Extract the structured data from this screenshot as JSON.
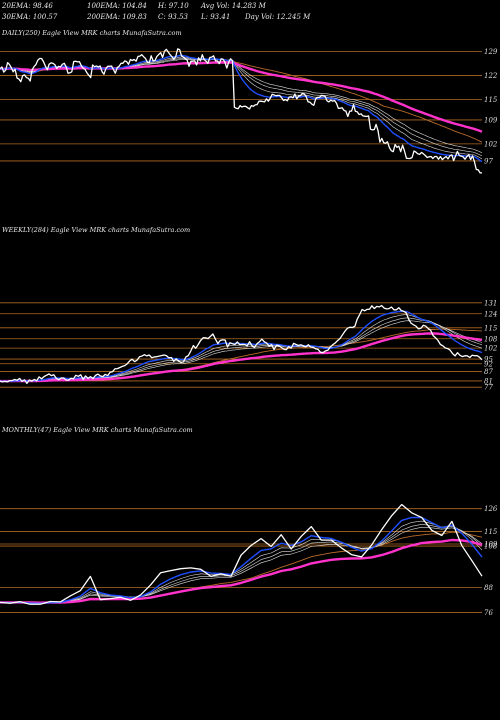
{
  "header": {
    "row1": [
      {
        "id": "ema20",
        "text": "20EMA: 98.46"
      },
      {
        "id": "ema100",
        "text": "100EMA: 104.84"
      },
      {
        "id": "high",
        "text": "H: 97.10"
      },
      {
        "id": "avgvol",
        "text": "Avg Vol: 14.283 M"
      }
    ],
    "row2": [
      {
        "id": "ema30",
        "text": "30EMA: 100.57"
      },
      {
        "id": "ema200",
        "text": "200EMA: 109.83"
      },
      {
        "id": "close",
        "text": "C: 93.53"
      },
      {
        "id": "low",
        "text": "L: 93.41"
      },
      {
        "id": "dayvol",
        "text": "Day Vol: 12.245 M"
      }
    ]
  },
  "colors": {
    "price": "#ffffff",
    "ema_blue": "#1f4fff",
    "ema_magenta": "#ff33cc",
    "ema_white": "#dddddd",
    "ema_brown": "#b86a2a",
    "hline": "#b06a20"
  },
  "chart_data": [
    {
      "type": "line",
      "title": "DAILY(250) Eagle  View  MRK charts MunafaSutra.com",
      "levels": [
        129,
        122,
        115,
        109,
        102,
        97
      ],
      "ylim": [
        92,
        133
      ],
      "price": [
        124,
        124.5,
        123,
        123.6,
        125.8,
        125.2,
        124.3,
        123.1,
        123.9,
        121.3,
        121,
        120.2,
        122,
        122.2,
        121.4,
        121.2,
        120.4,
        123.7,
        124.6,
        125.2,
        126.5,
        127,
        127,
        126.1,
        124.7,
        123.7,
        125.3,
        125.7,
        125.6,
        125.2,
        124.1,
        124.7,
        124.5,
        125.3,
        125.6,
        124.5,
        122.7,
        122.8,
        123.1,
        126.1,
        126.2,
        126,
        126.1,
        124.9,
        124.1,
        123.8,
        122.8,
        122.1,
        121.4,
        125.1,
        124.6,
        124.8,
        124.5,
        124.8,
        123.1,
        122.4,
        124.1,
        124.7,
        124.7,
        124.8,
        123.8,
        122.7,
        124.3,
        124.7,
        125.6,
        125.6,
        126.3,
        126.1,
        125.3,
        126.7,
        126.4,
        126.7,
        126.2,
        127.6,
        127.7,
        128.1,
        127.5,
        127,
        125.9,
        125.8,
        127.8,
        126.3,
        126.4,
        127.6,
        128.2,
        128.7,
        127.3,
        129.1,
        129.7,
        128.9,
        128.1,
        127.5,
        126.8,
        127.6,
        129.8,
        129.6,
        127.8,
        127.4,
        126.9,
        126.6,
        124.7,
        126.2,
        126.2,
        126.3,
        125.1,
        127.2,
        126.3,
        128.1,
        126.7,
        126.2,
        125.6,
        127.3,
        127.4,
        127.8,
        126.3,
        126.3,
        125.5,
        126.9,
        126.8,
        125.9,
        124.2,
        125.9,
        126.9,
        126.3,
        112.7,
        112.4,
        112.3,
        113.2,
        112.8,
        113,
        113,
        112.6,
        112.2,
        113.2,
        113,
        113.4,
        113.5,
        114.5,
        114.5,
        114.4,
        114.3,
        115.2,
        114.5,
        115.4,
        116.5,
        116.3,
        116.1,
        116.2,
        116.2,
        115.5,
        114.7,
        115,
        114.6,
        115.7,
        115.8,
        115.5,
        116.6,
        115.2,
        116,
        116.1,
        116.8,
        116.6,
        115.8,
        114.3,
        114.2,
        113.6,
        113.3,
        115.2,
        115.6,
        115.6,
        116.2,
        116.1,
        115.9,
        114.6,
        114.3,
        114.8,
        114.5,
        114.7,
        113.9,
        112.4,
        112.4,
        112.6,
        111.8,
        111.6,
        110,
        111.6,
        111.6,
        113.5,
        111.5,
        111.4,
        110.6,
        110.8,
        110.2,
        110.1,
        110,
        110.2,
        106.3,
        106.1,
        106.2,
        107.7,
        105.9,
        102.5,
        103.6,
        102.3,
        102.2,
        102.6,
        100.9,
        100,
        99.7,
        101.8,
        101,
        101.3,
        99.7,
        101.6,
        99.9,
        97.8,
        97.7,
        97.7,
        98,
        99.9,
        99.6,
        99.1,
        98.9,
        99.5,
        99.1,
        98.6,
        98,
        98.2,
        98.3,
        97.7,
        98.3,
        98.3,
        97.5,
        98.3,
        97.4,
        97.9,
        98.3,
        97.6,
        98.5,
        98.8,
        97.1,
        98.4,
        99.8,
        98.6,
        98.4,
        98.2,
        97.5,
        98.3,
        98.8,
        97.4,
        98.5,
        96.8,
        94.5,
        94.4,
        93.5,
        93.5
      ]
    },
    {
      "type": "line",
      "title": "WEEKLY(284) Eagle  View  MRK charts MunafaSutra.com",
      "levels": [
        131,
        124,
        115,
        108,
        102,
        95,
        92,
        87,
        81,
        77
      ],
      "ylim": [
        72,
        136
      ],
      "price": [
        80.9,
        80.4,
        80.7,
        80.4,
        81.2,
        81.3,
        81.9,
        81.4,
        82.6,
        80.7,
        81.7,
        79.4,
        81.6,
        80.9,
        82,
        81.1,
        83.6,
        82.3,
        83.8,
        84.6,
        85.5,
        84.4,
        84.9,
        82.7,
        81.8,
        82.9,
        82.9,
        81.6,
        81.5,
        82.7,
        82.3,
        84.6,
        84,
        84.9,
        82,
        84.2,
        82.6,
        83.8,
        82.5,
        84.5,
        85.4,
        84.2,
        83.8,
        85.2,
        84.4,
        86.5,
        86.9,
        88.8,
        88.9,
        89.6,
        90.3,
        90.8,
        92,
        93.8,
        94.9,
        93.3,
        94.3,
        96.5,
        96.9,
        97.8,
        97,
        97.6,
        95.9,
        96.3,
        96.5,
        96.9,
        97.2,
        97.6,
        97.2,
        95.8,
        96,
        93.6,
        95.1,
        93.7,
        92.8,
        93.2,
        96.4,
        97.3,
        100.2,
        103.6,
        101.9,
        104.3,
        106.9,
        108.6,
        108.6,
        108.1,
        109.5,
        111.1,
        108,
        104.9,
        106.9,
        107.3,
        107.2,
        102.8,
        105.5,
        104.8,
        104.3,
        106,
        104.1,
        104.4,
        104.3,
        103.5,
        106.1,
        103.4,
        102.4,
        104.8,
        106,
        107.8,
        106.1,
        105.2,
        103.3,
        104.2,
        101.1,
        103.9,
        103.6,
        102.4,
        101.3,
        101,
        102.9,
        102,
        105,
        104.3,
        103.7,
        104.1,
        103.4,
        102.8,
        104.2,
        102.7,
        102.5,
        101.6,
        101.2,
        99.3,
        99.1,
        100.2,
        100.7,
        102.8,
        104.2,
        105.3,
        106.8,
        108.2,
        110.5,
        112.9,
        114.7,
        115.4,
        115.2,
        115.9,
        120.5,
        123.5,
        126.7,
        125.9,
        126.8,
        126.9,
        129.1,
        127.3,
        128.7,
        128.4,
        129.2,
        127.6,
        127.1,
        127.3,
        128.3,
        126.5,
        126.5,
        127.9,
        126,
        125.6,
        124.6,
        120.6,
        118,
        116.9,
        116.1,
        114.3,
        114.6,
        116.6,
        116.1,
        114.5,
        113.5,
        110,
        108.7,
        106.9,
        104.3,
        103.5,
        102.1,
        101.7,
        100.7,
        98.5,
        97,
        99.1,
        97.4,
        96.6,
        97.1,
        97.1,
        96,
        97.5,
        97.1,
        97.2,
        96.1,
        94.5
      ]
    },
    {
      "type": "line",
      "title": "MONTHLY(47) Eagle  View  MRK charts MunafaSutra.com",
      "levels": [
        126,
        115,
        109,
        108,
        88,
        76
      ],
      "ylim": [
        70,
        135
      ],
      "price": [
        80.9,
        80.5,
        81.2,
        80,
        80,
        81.3,
        81.1,
        84,
        86.5,
        93.4,
        82.2,
        82.7,
        83.4,
        81.9,
        84.5,
        89.3,
        95.2,
        96.2,
        97.1,
        97.5,
        96.8,
        93.4,
        94.6,
        93.5,
        103.6,
        108.3,
        111.6,
        107.8,
        113.5,
        106.6,
        112.7,
        117.4,
        110.9,
        110.9,
        107.1,
        103.9,
        102.8,
        108.4,
        115.9,
        122.6,
        128,
        124,
        121.7,
        115.6,
        113.1,
        119.9,
        108.2,
        100.9,
        93.5
      ]
    }
  ]
}
